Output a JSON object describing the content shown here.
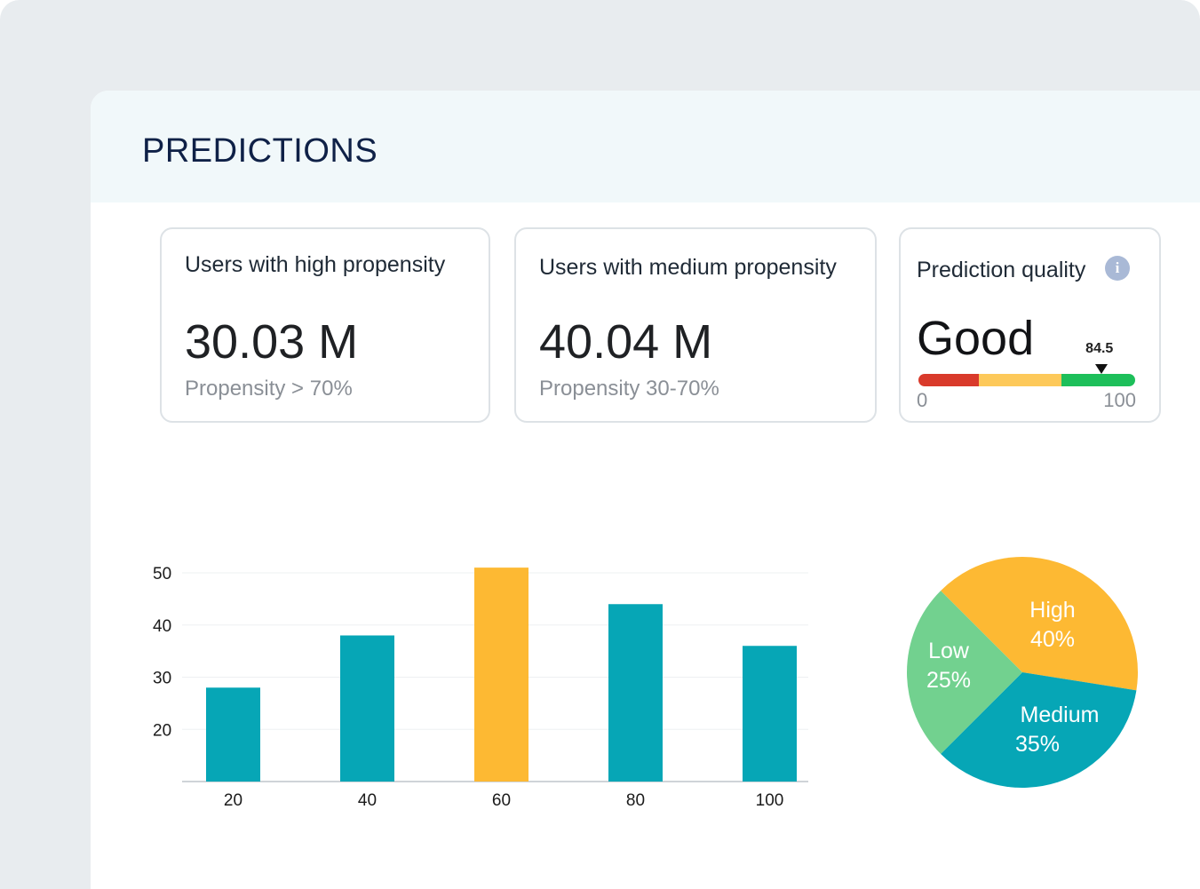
{
  "panel": {
    "title": "PREDICTIONS"
  },
  "cards": {
    "high": {
      "title": "Users with high propensity",
      "value": "30.03 M",
      "subtitle": "Propensity > 70%"
    },
    "medium": {
      "title": "Users with medium propensity",
      "value": "40.04 M",
      "subtitle": "Propensity 30-70%"
    },
    "quality": {
      "title": "Prediction quality",
      "info_icon": "i",
      "value": "Good",
      "score": 84.5,
      "score_label": "84.5",
      "min_label": "0",
      "max_label": "100",
      "segments": [
        {
          "from": 0,
          "to": 28,
          "color": "#d93a2b"
        },
        {
          "from": 28,
          "to": 66,
          "color": "#fdc95a"
        },
        {
          "from": 66,
          "to": 100,
          "color": "#1dbf5a"
        }
      ]
    }
  },
  "chart_data": [
    {
      "type": "bar",
      "categories": [
        "20",
        "40",
        "60",
        "80",
        "100"
      ],
      "values": [
        28,
        38,
        51,
        44,
        36
      ],
      "ylim": [
        10,
        50
      ],
      "yticks": [
        "20",
        "30",
        "40",
        "50"
      ],
      "grid": true,
      "highlight_index": 2,
      "colors": {
        "bar": "#06a6b6",
        "highlight": "#fdb933",
        "grid": "#eef0f2",
        "axis": "#cfd4d8",
        "label": "#1b1b1b"
      }
    },
    {
      "type": "pie",
      "slices": [
        {
          "name": "High",
          "label": "High",
          "pct_label": "40%",
          "value": 40,
          "color": "#fdb933"
        },
        {
          "name": "Medium",
          "label": "Medium",
          "pct_label": "35%",
          "value": 35,
          "color": "#06a6b6"
        },
        {
          "name": "Low",
          "label": "Low",
          "pct_label": "25%",
          "value": 25,
          "color": "#72d18f"
        }
      ]
    }
  ]
}
